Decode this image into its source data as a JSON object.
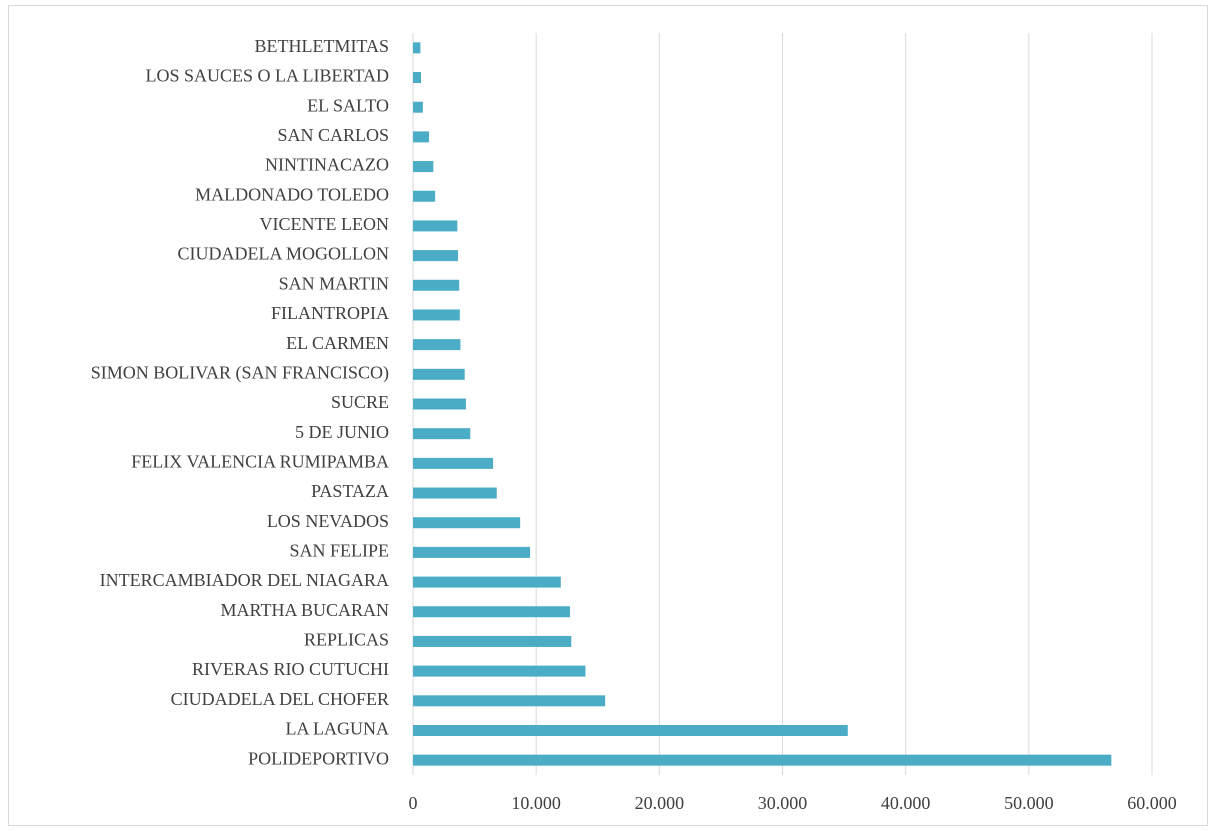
{
  "chart_data": {
    "type": "barh",
    "categories": [
      "BETHLETMITAS",
      "LOS SAUCES O LA LIBERTAD",
      "EL SALTO",
      "SAN CARLOS",
      "NINTINACAZO",
      "MALDONADO TOLEDO",
      "VICENTE LEON",
      "CIUDADELA MOGOLLON",
      "SAN MARTIN",
      "FILANTROPIA",
      "EL CARMEN",
      "SIMON BOLIVAR (SAN FRANCISCO)",
      "SUCRE",
      "5 DE JUNIO",
      "FELIX VALENCIA RUMIPAMBA",
      "PASTAZA",
      "LOS NEVADOS",
      "SAN FELIPE",
      "INTERCAMBIADOR DEL NIAGARA",
      "MARTHA BUCARAN",
      "REPLICAS",
      "RIVERAS RIO CUTUCHI",
      "CIUDADELA DEL CHOFER",
      "LA LAGUNA",
      "POLIDEPORTIVO"
    ],
    "values": [
      600,
      650,
      800,
      1300,
      1650,
      1800,
      3600,
      3650,
      3750,
      3800,
      3850,
      4200,
      4300,
      4650,
      6500,
      6800,
      8700,
      9500,
      12000,
      12750,
      12850,
      14000,
      15600,
      35300,
      56700
    ],
    "color": "#4bacc6",
    "xlim": [
      0,
      60000
    ],
    "xticks": [
      0,
      {
        "value": 10000,
        "label": "10.000"
      },
      {
        "value": 20000,
        "label": "20.000"
      },
      {
        "value": 30000,
        "label": "30.000"
      },
      {
        "value": 40000,
        "label": "40.000"
      },
      {
        "value": 50000,
        "label": "50.000"
      },
      {
        "value": 60000,
        "label": "60.000"
      }
    ],
    "grid": true
  }
}
